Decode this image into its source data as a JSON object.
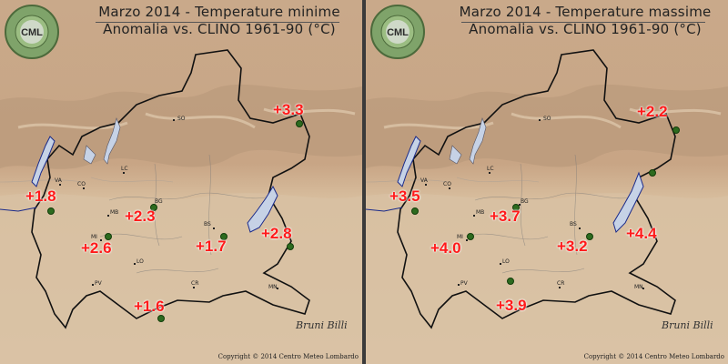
{
  "logo": {
    "ring_text": "CENTRO METEO LOMBARDO",
    "initials": "CML"
  },
  "copyright": "Copyright © 2014 Centro Meteo Lombardo",
  "signature": "Bruni Billi",
  "cities": [
    "SO",
    "VA",
    "CO",
    "LC",
    "BG",
    "MB",
    "BS",
    "MI",
    "LO",
    "PV",
    "CR",
    "MN"
  ],
  "panels": [
    {
      "title": "Marzo 2014 - Temperature minime",
      "subtitle": "Anomalia vs. CLINO 1961-90 (°C)",
      "values": [
        "+3.3",
        "+1.8",
        "+2.3",
        "+2.8",
        "+1.7",
        "+2.6",
        "+1.6"
      ]
    },
    {
      "title": "Marzo 2014 - Temperature massime",
      "subtitle": "Anomalia vs. CLINO 1961-90 (°C)",
      "values": [
        "+2.2",
        "+3.5",
        "+3.7",
        "+4.4",
        "+3.2",
        "+4.0",
        "+3.9"
      ]
    }
  ],
  "colors": {
    "mountains": "#b89879",
    "plain": "#d9c1a4",
    "water": "#c6d2e6",
    "value": "#ff1a1a",
    "station": "#2d6b1f"
  }
}
